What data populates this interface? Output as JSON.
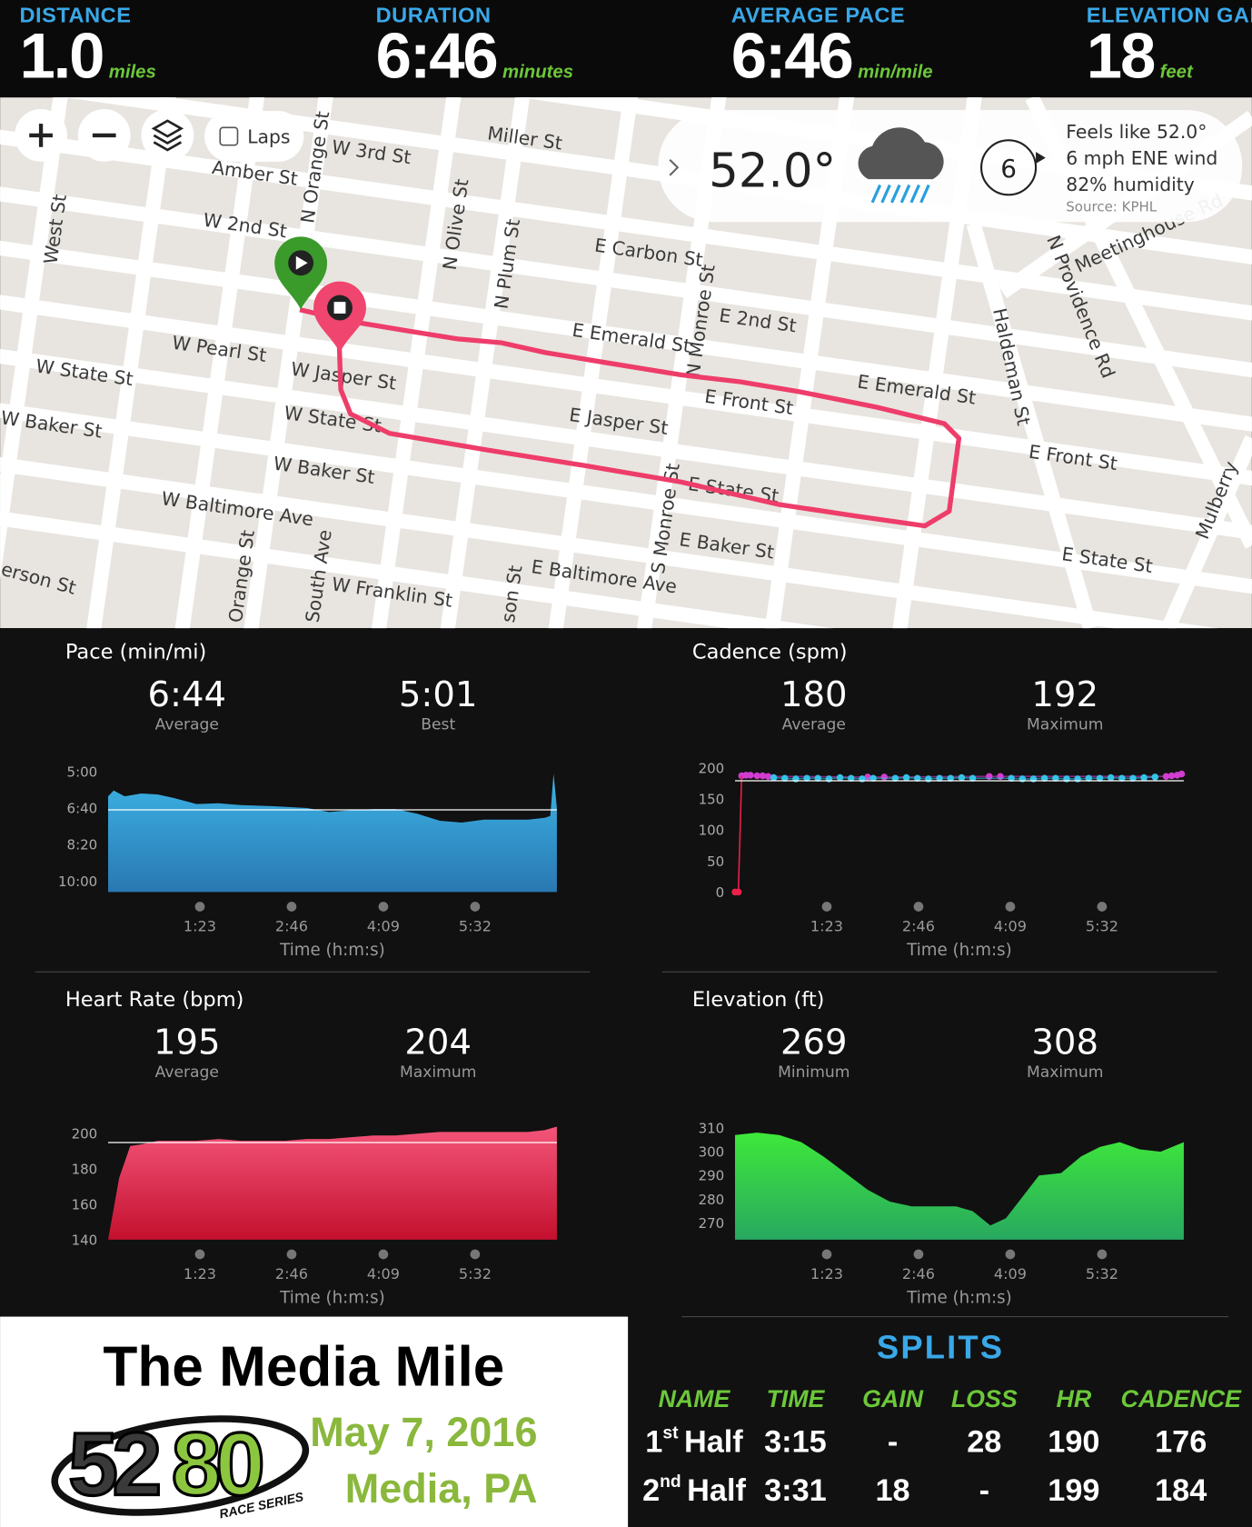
{
  "stats": [
    {
      "label": "DISTANCE",
      "value": "1.0",
      "unit": "miles"
    },
    {
      "label": "DURATION",
      "value": "6:46",
      "unit": "minutes"
    },
    {
      "label": "AVERAGE PACE",
      "value": "6:46",
      "unit": "min/mile"
    },
    {
      "label": "ELEVATION GAIN",
      "value": "18",
      "unit": "feet"
    }
  ],
  "map": {
    "laps": "Laps",
    "streets": [
      "Miller St",
      "W 3rd St",
      "Amber St",
      "N Orange St",
      "W 2nd St",
      "West St",
      "E Carbon St",
      "N Olive St",
      "N Plum St",
      "N Monroe St",
      "E 2nd St",
      "E Emerald St",
      "E Emerald St",
      "W Pearl St",
      "W State St",
      "W Jasper St",
      "E Front St",
      "E Front St",
      "E Jasper St",
      "W Baker St",
      "W State St",
      "W Baker St",
      "E State St",
      "W Baltimore Ave",
      "S Monroe St",
      "E Baker St",
      "E Baltimore Ave",
      "Orange St",
      "South Ave",
      "W Franklin St",
      "son St",
      "E State St",
      "Haldeman St",
      "N Providence Rd",
      "Meetinghouse Rd",
      "Mulberry",
      "erson St"
    ]
  },
  "weather": {
    "temp": "52.0°",
    "dial": "6",
    "feels": "Feels like 52.0°",
    "wind": "6 mph ENE wind",
    "humidity": "82% humidity",
    "source": "Source: KPHL"
  },
  "panels": [
    {
      "title": "Pace (min/mi)",
      "stats": [
        {
          "value": "6:44",
          "label": "Average"
        },
        {
          "value": "5:01",
          "label": "Best"
        }
      ],
      "chart": {
        "type": "area",
        "gradient": [
          "#3cb4e6",
          "#2a78b2"
        ],
        "xlabel": "Time (h:m:s)",
        "xlim": [
          0,
          406
        ],
        "xticks": [
          {
            "value": 83,
            "label": "1:23"
          },
          {
            "value": 166,
            "label": "2:46"
          },
          {
            "value": 249,
            "label": "4:09"
          },
          {
            "value": 332,
            "label": "5:32"
          }
        ],
        "ylim": [
          630,
          290
        ],
        "yticks": [
          {
            "value": 300,
            "label": "5:00"
          },
          {
            "value": 400,
            "label": "6:40"
          },
          {
            "value": 500,
            "label": "8:20"
          },
          {
            "value": 600,
            "label": "10:00"
          }
        ],
        "reference": 404,
        "x": [
          0,
          5,
          15,
          30,
          45,
          60,
          80,
          100,
          120,
          150,
          180,
          200,
          220,
          240,
          260,
          280,
          300,
          320,
          340,
          360,
          380,
          395,
          400,
          403,
          406
        ],
        "values": [
          367,
          351,
          367,
          359,
          362,
          372,
          388,
          386,
          391,
          394,
          399,
          410,
          405,
          402,
          402,
          415,
          434,
          439,
          431,
          431,
          431,
          426,
          421,
          305,
          399
        ]
      }
    },
    {
      "title": "Cadence (spm)",
      "stats": [
        {
          "value": "180",
          "label": "Average"
        },
        {
          "value": "192",
          "label": "Maximum"
        }
      ],
      "chart": {
        "type": "scatter",
        "xlabel": "Time (h:m:s)",
        "xlim": [
          0,
          406
        ],
        "xticks": [
          {
            "value": 83,
            "label": "1:23"
          },
          {
            "value": 166,
            "label": "2:46"
          },
          {
            "value": 249,
            "label": "4:09"
          },
          {
            "value": 332,
            "label": "5:32"
          }
        ],
        "ylim": [
          0,
          200
        ],
        "yticks": [
          0,
          50,
          100,
          150,
          200
        ],
        "reference": 180,
        "series": [
          {
            "color": "#e8204a",
            "x": [
              0,
              3
            ],
            "values": [
              0,
              0
            ]
          },
          {
            "color": "#d23cd0",
            "x": [
              6,
              10,
              14,
              20,
              25,
              30,
              120,
              135,
              230,
              240,
              390,
              395,
              400,
              404
            ],
            "values": [
              188,
              189,
              189,
              188,
              188,
              187,
              186,
              186,
              187,
              187,
              187,
              188,
              189,
              191
            ]
          },
          {
            "color": "#35c3e8",
            "x": [
              35,
              45,
              55,
              65,
              75,
              85,
              95,
              105,
              115,
              125,
              145,
              155,
              165,
              175,
              185,
              195,
              205,
              215,
              250,
              260,
              270,
              280,
              290,
              300,
              310,
              320,
              330,
              340,
              350,
              360,
              370,
              380
            ],
            "values": [
              185,
              184,
              183,
              184,
              184,
              183,
              185,
              184,
              183,
              184,
              184,
              185,
              184,
              183,
              184,
              184,
              185,
              184,
              184,
              183,
              183,
              184,
              184,
              183,
              183,
              184,
              184,
              185,
              184,
              184,
              185,
              186
            ]
          }
        ]
      }
    },
    {
      "title": "Heart Rate (bpm)",
      "stats": [
        {
          "value": "195",
          "label": "Average"
        },
        {
          "value": "204",
          "label": "Maximum"
        }
      ],
      "chart": {
        "type": "area",
        "gradient": [
          "#f4557a",
          "#c4102e"
        ],
        "xlabel": "Time (h:m:s)",
        "xlim": [
          0,
          406
        ],
        "xticks": [
          {
            "value": 83,
            "label": "1:23"
          },
          {
            "value": 166,
            "label": "2:46"
          },
          {
            "value": 249,
            "label": "4:09"
          },
          {
            "value": 332,
            "label": "5:32"
          }
        ],
        "ylim": [
          140,
          210
        ],
        "yticks": [
          140,
          160,
          180,
          200
        ],
        "reference": 195,
        "x": [
          0,
          10,
          20,
          30,
          45,
          60,
          80,
          100,
          120,
          140,
          160,
          180,
          200,
          220,
          240,
          260,
          280,
          300,
          320,
          340,
          360,
          380,
          395,
          406
        ],
        "values": [
          140,
          175,
          193,
          194,
          196,
          196,
          196,
          197,
          196,
          196,
          196,
          197,
          197,
          198,
          199,
          199,
          200,
          201,
          201,
          201,
          201,
          201,
          202,
          204
        ]
      }
    },
    {
      "title": "Elevation (ft)",
      "stats": [
        {
          "value": "269",
          "label": "Minimum"
        },
        {
          "value": "308",
          "label": "Maximum"
        }
      ],
      "chart": {
        "type": "area",
        "gradient": [
          "#3ee83a",
          "#28a860"
        ],
        "xlabel": "Time (h:m:s)",
        "xlim": [
          0,
          406
        ],
        "xticks": [
          {
            "value": 83,
            "label": "1:23"
          },
          {
            "value": 166,
            "label": "2:46"
          },
          {
            "value": 249,
            "label": "4:09"
          },
          {
            "value": 332,
            "label": "5:32"
          }
        ],
        "ylim": [
          263,
          315
        ],
        "yticks": [
          270,
          280,
          290,
          300,
          310
        ],
        "x": [
          0,
          20,
          40,
          60,
          80,
          100,
          120,
          140,
          160,
          180,
          200,
          215,
          231,
          245,
          260,
          275,
          295,
          313,
          330,
          348,
          366,
          385,
          406
        ],
        "values": [
          307,
          308,
          307,
          304,
          298,
          291,
          284,
          279,
          277,
          277,
          277,
          275,
          269,
          272,
          281,
          290,
          291,
          298,
          302,
          304,
          301,
          300,
          304
        ]
      }
    }
  ],
  "event": {
    "title": "The Media Mile",
    "logo_a": "52",
    "logo_b": "80",
    "tagline": "RACE SERIES",
    "date": "May 7, 2016",
    "place": "Media, PA"
  },
  "splits": {
    "title": "SPLITS",
    "columns": [
      "NAME",
      "TIME",
      "GAIN",
      "LOSS",
      "HR",
      "CADENCE"
    ],
    "rows": [
      {
        "ordinal": "1",
        "suffix": "st",
        "label": "Half",
        "cells": [
          "3:15",
          "-",
          "28",
          "190",
          "176"
        ]
      },
      {
        "ordinal": "2",
        "suffix": "nd",
        "label": "Half",
        "cells": [
          "3:31",
          "18",
          "-",
          "199",
          "184"
        ]
      }
    ]
  }
}
